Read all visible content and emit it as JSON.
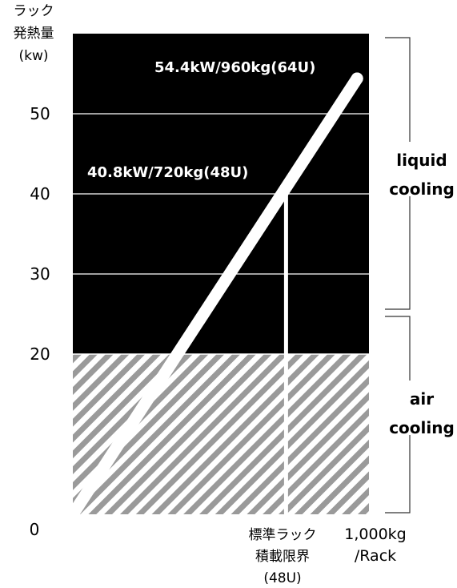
{
  "chart_data": {
    "type": "line",
    "title": "",
    "ylabel": [
      "ラック",
      "発熱量",
      "(kw)"
    ],
    "ylim": [
      0,
      60
    ],
    "yticks": [
      {
        "value": 0,
        "label": "0"
      },
      {
        "value": 20,
        "label": "20"
      },
      {
        "value": 30,
        "label": "30"
      },
      {
        "value": 40,
        "label": "40"
      },
      {
        "value": 50,
        "label": "50"
      }
    ],
    "xlim": [
      0,
      1000
    ],
    "x_labels": [
      {
        "value": 720,
        "lines": [
          "標準ラック",
          "積載限界",
          "(48U)"
        ]
      },
      {
        "value": 1000,
        "lines": [
          "1,000kg",
          "/Rack"
        ]
      }
    ],
    "series": [
      {
        "points": [
          {
            "x": 0,
            "y": 0
          },
          {
            "x": 960,
            "y": 54.4
          }
        ]
      }
    ],
    "annotations": [
      {
        "text": "54.4kW/960kg(64U)",
        "x": 960,
        "y": 54.4
      },
      {
        "text": "40.8kW/720kg(48U)",
        "x": 720,
        "y": 40.8
      }
    ],
    "zones": [
      {
        "label": [
          "liquid",
          "cooling"
        ],
        "from": 20,
        "to": 60,
        "style": "solid-black"
      },
      {
        "label": [
          "air",
          "cooling"
        ],
        "from": 0,
        "to": 20,
        "style": "hatched"
      }
    ],
    "grid": true,
    "colors": {
      "background": "#000000",
      "line": "#ffffff",
      "hatch": "#9a9a9a",
      "text": "#000000",
      "annotation": "#ffffff"
    }
  }
}
